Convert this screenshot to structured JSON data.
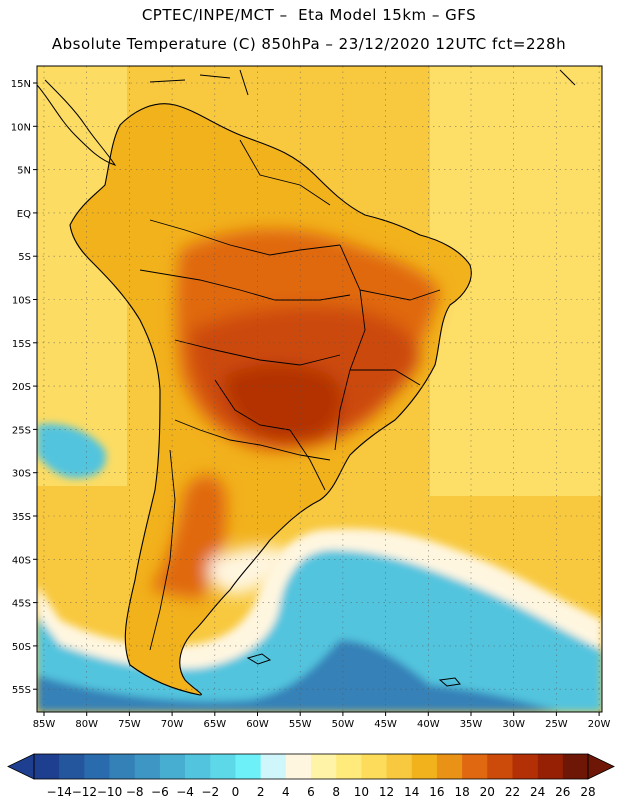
{
  "header": {
    "line1": "CPTEC/INPE/MCT –  Eta Model 15km – GFS",
    "line2": "Absolute Temperature (C) 850hPa – 23/12/2020 12UTC fct=228h"
  },
  "axes": {
    "lat_labels": [
      "15N",
      "10N",
      "5N",
      "EQ",
      "5S",
      "10S",
      "15S",
      "20S",
      "25S",
      "30S",
      "35S",
      "40S",
      "45S",
      "50S",
      "55S"
    ],
    "lon_labels": [
      "85W",
      "80W",
      "75W",
      "70W",
      "65W",
      "60W",
      "55W",
      "50W",
      "45W",
      "40W",
      "35W",
      "30W",
      "25W",
      "20W"
    ]
  },
  "colorbar": {
    "labels": [
      "-14",
      "-12",
      "-10",
      "-8",
      "-6",
      "-4",
      "-2",
      "0",
      "2",
      "4",
      "6",
      "8",
      "10",
      "12",
      "14",
      "16",
      "18",
      "20",
      "22",
      "24",
      "26",
      "28"
    ],
    "colors": [
      "#1e3f8f",
      "#24569e",
      "#2a6bad",
      "#3481b8",
      "#3d96c4",
      "#47aed2",
      "#52c4de",
      "#5cd8e8",
      "#6ef0f8",
      "#cff6fb",
      "#fff6e0",
      "#fff3a8",
      "#ffea7c",
      "#fcdc5a",
      "#f8c93f",
      "#f2b21c",
      "#e99215",
      "#e06810",
      "#cc4a0a",
      "#b33006",
      "#962004",
      "#6f1706"
    ]
  },
  "map_colors": {
    "ocean_warm": "#f8c93f",
    "ocean_south": "#ffea7c",
    "land_base": "#f2b21c",
    "land_hot": "#e06810",
    "land_hotter": "#cc4a0a",
    "land_hottest": "#b33006",
    "cold_band": "#52c4de",
    "cold_core": "#3481b8",
    "pale": "#fff6e0",
    "coast": "#000000"
  }
}
